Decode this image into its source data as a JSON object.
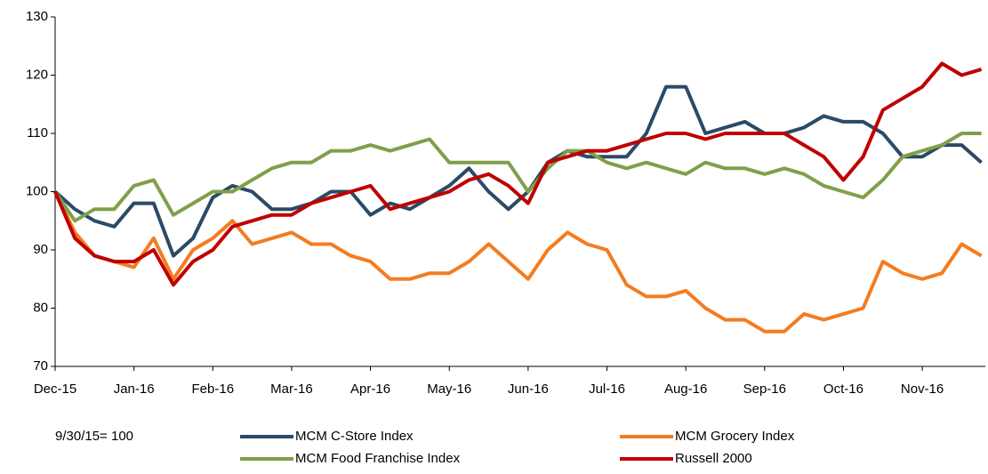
{
  "chart_data": {
    "type": "line",
    "annotation": "9/30/15= 100",
    "categories": [
      "Dec-15",
      null,
      null,
      null,
      "Jan-16",
      null,
      null,
      null,
      "Feb-16",
      null,
      null,
      null,
      "Mar-16",
      null,
      null,
      null,
      "Apr-16",
      null,
      null,
      null,
      "May-16",
      null,
      null,
      null,
      "Jun-16",
      null,
      null,
      null,
      "Jul-16",
      null,
      null,
      null,
      "Aug-16",
      null,
      null,
      null,
      "Sep-16",
      null,
      null,
      null,
      "Oct-16",
      null,
      null,
      null,
      "Nov-16",
      null,
      null,
      null
    ],
    "series": [
      {
        "name": "MCM C-Store Index",
        "color": "#2b4a66",
        "values": [
          100,
          97,
          95,
          94,
          98,
          98,
          89,
          92,
          99,
          101,
          100,
          97,
          97,
          98,
          100,
          100,
          96,
          98,
          97,
          99,
          101,
          104,
          100,
          97,
          100,
          105,
          107,
          106,
          106,
          106,
          110,
          118,
          118,
          110,
          111,
          112,
          110,
          110,
          111,
          113,
          112,
          112,
          110,
          106,
          106,
          108,
          108,
          105
        ]
      },
      {
        "name": "MCM Grocery Index",
        "color": "#f47c20",
        "values": [
          100,
          93,
          89,
          88,
          87,
          92,
          85,
          90,
          92,
          95,
          91,
          92,
          93,
          91,
          91,
          89,
          88,
          85,
          85,
          86,
          86,
          88,
          91,
          88,
          85,
          90,
          93,
          91,
          90,
          84,
          82,
          82,
          83,
          80,
          78,
          78,
          76,
          76,
          79,
          78,
          79,
          80,
          88,
          86,
          85,
          86,
          91,
          89
        ]
      },
      {
        "name": "MCM Food Franchise Index",
        "color": "#7fa04a",
        "values": [
          100,
          95,
          97,
          97,
          101,
          102,
          96,
          98,
          100,
          100,
          102,
          104,
          105,
          105,
          107,
          107,
          108,
          107,
          108,
          109,
          105,
          105,
          105,
          105,
          100,
          104,
          107,
          107,
          105,
          104,
          105,
          104,
          103,
          105,
          104,
          104,
          103,
          104,
          103,
          101,
          100,
          99,
          102,
          106,
          107,
          108,
          110,
          110
        ]
      },
      {
        "name": "Russell 2000",
        "color": "#c00000",
        "values": [
          100,
          92,
          89,
          88,
          88,
          90,
          84,
          88,
          90,
          94,
          95,
          96,
          96,
          98,
          99,
          100,
          101,
          97,
          98,
          99,
          100,
          102,
          103,
          101,
          98,
          105,
          106,
          107,
          107,
          108,
          109,
          110,
          110,
          109,
          110,
          110,
          110,
          110,
          108,
          106,
          102,
          106,
          114,
          116,
          118,
          122,
          120,
          121
        ]
      }
    ],
    "ylim": [
      70,
      130
    ],
    "yticks": [
      70,
      80,
      90,
      100,
      110,
      120,
      130
    ]
  }
}
